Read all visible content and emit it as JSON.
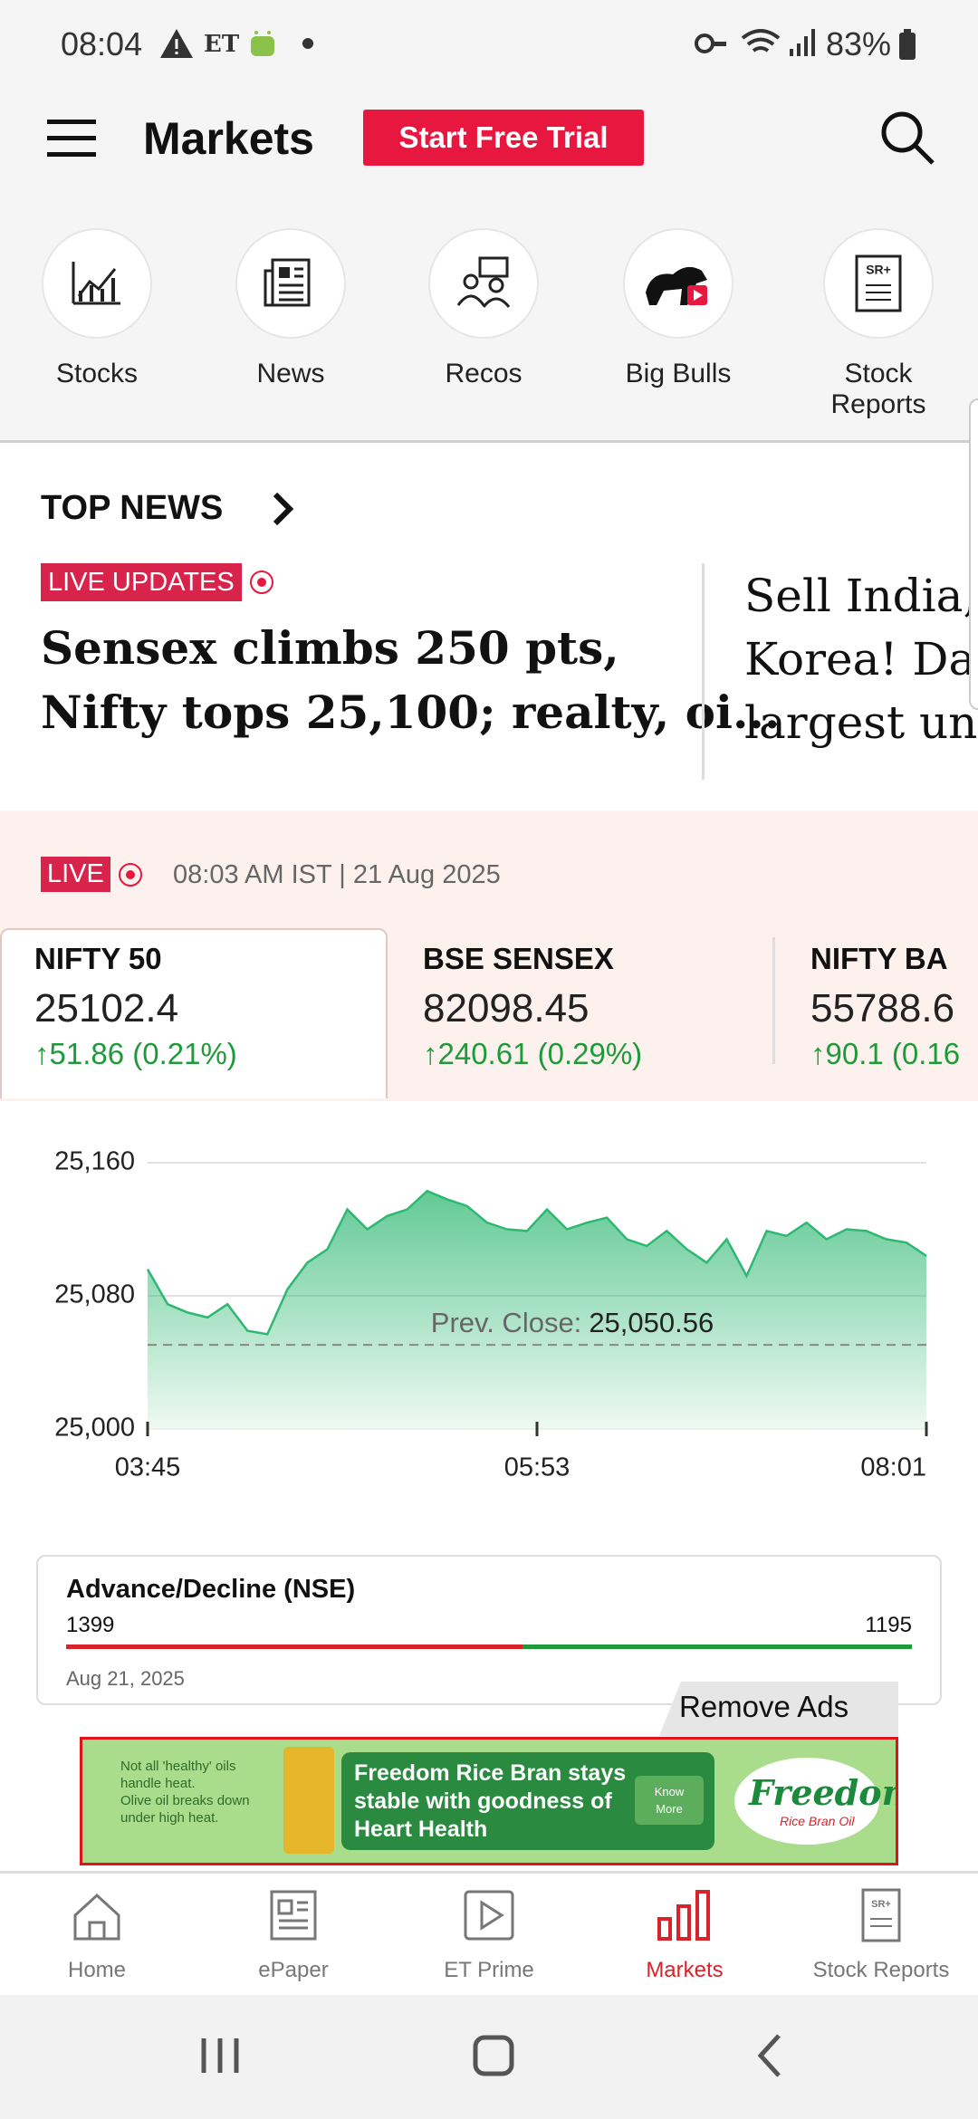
{
  "status_bar": {
    "time": "08:04",
    "carrier": "ET",
    "battery": "83%"
  },
  "header": {
    "title": "Markets",
    "trial_button": "Start Free Trial"
  },
  "shortcuts": [
    "Stocks",
    "News",
    "Recos",
    "Big Bulls",
    "Stock Reports"
  ],
  "top_news": {
    "heading": "TOP NEWS",
    "badge": "LIVE UPDATES",
    "stories": [
      {
        "lines": [
          "Sensex climbs 250 pts,",
          "Nifty tops 25,100; realty, oi..."
        ]
      },
      {
        "lines": [
          "Sell India, I",
          "Korea! Dala",
          "largest und"
        ]
      }
    ]
  },
  "market": {
    "badge": "LIVE",
    "timestamp": "08:03 AM IST | 21 Aug 2025",
    "indices": [
      {
        "name": "NIFTY 50",
        "value": "25102.4",
        "change": "↑51.86 (0.21%)"
      },
      {
        "name": "BSE SENSEX",
        "value": "82098.45",
        "change": "↑240.61 (0.29%)"
      },
      {
        "name": "NIFTY BA",
        "value": "55788.6",
        "change": "↑90.1 (0.16"
      }
    ]
  },
  "chart": {
    "type": "line",
    "color": "#2eb872",
    "x_labels": [
      "03:45",
      "05:53",
      "08:01"
    ],
    "values": [
      25096,
      25075,
      25070,
      25067,
      25075,
      25059,
      25057,
      25084,
      25100,
      25108,
      25132,
      25120,
      25128,
      25132,
      25143,
      25138,
      25134,
      25124,
      25120,
      25119,
      25132,
      25120,
      25124,
      25127,
      25114,
      25110,
      25119,
      25108,
      25100,
      25114,
      25092,
      25119,
      25116,
      25124,
      25114,
      25120,
      25119,
      25114,
      25112,
      25104
    ],
    "ylim": [
      25000,
      25160
    ],
    "yticks": [
      {
        "value": 25000,
        "label": "25,000"
      },
      {
        "value": 25080,
        "label": "25,080"
      },
      {
        "value": 25160,
        "label": "25,160"
      }
    ],
    "grid": true,
    "prev_close": {
      "label": "Prev. Close:",
      "value": 25050.56,
      "value_label": "25,050.56"
    }
  },
  "advance_decline": {
    "title": "Advance/Decline (NSE)",
    "advances": 1399,
    "declines": 1195,
    "date": "Aug 21, 2025"
  },
  "ad": {
    "remove_ads": "Remove Ads",
    "tagline": [
      "Not all 'healthy' oils",
      "handle heat.",
      "Olive oil breaks down",
      "under high heat."
    ],
    "message": [
      "Freedom Rice Bran stays",
      "stable with goodness of",
      "Heart Health"
    ],
    "cta": [
      "Know",
      "More"
    ],
    "brand": "Freedom",
    "brand_sub": "Rice Bran Oil"
  },
  "bottom_nav": {
    "items": [
      "Home",
      "ePaper",
      "ET Prime",
      "Markets",
      "Stock Reports"
    ],
    "active_index": 3
  }
}
